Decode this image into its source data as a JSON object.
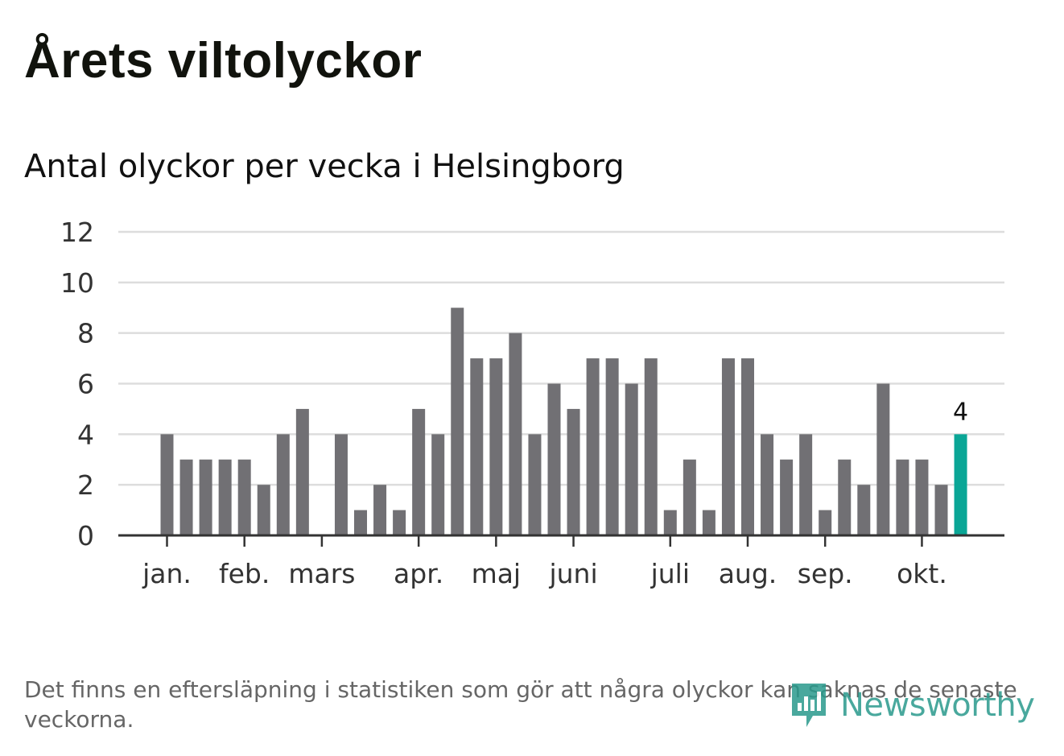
{
  "header": {
    "title": "Årets viltolyckor",
    "subtitle": "Antal olyckor per vecka i Helsingborg"
  },
  "footer": {
    "note": "Det finns en eftersläpning i statistiken som gör att några olyckor kan saknas de senaste veckorna.",
    "logo_text": "Newsworthy",
    "logo_icon": "bar-chart-bubble-icon"
  },
  "colors": {
    "bar": "#717074",
    "highlight": "#0aa696",
    "grid": "#dddddd",
    "axis": "#333333",
    "logo": "#2a9a8c"
  },
  "chart_data": {
    "type": "bar",
    "title": "Antal olyckor per vecka i Helsingborg",
    "xlabel": "",
    "ylabel": "",
    "ylim": [
      0,
      12
    ],
    "yticks": [
      0,
      2,
      4,
      6,
      8,
      10,
      12
    ],
    "grid": true,
    "week_start": 1,
    "values": [
      4,
      3,
      3,
      3,
      3,
      2,
      4,
      5,
      0,
      4,
      1,
      2,
      1,
      5,
      4,
      9,
      7,
      7,
      8,
      4,
      6,
      5,
      7,
      7,
      6,
      7,
      1,
      3,
      1,
      7,
      7,
      4,
      3,
      4,
      1,
      3,
      2,
      6,
      3,
      3,
      2,
      4
    ],
    "month_labels": [
      {
        "label": "jan.",
        "week": 1
      },
      {
        "label": "feb.",
        "week": 5
      },
      {
        "label": "mars",
        "week": 9
      },
      {
        "label": "apr.",
        "week": 14
      },
      {
        "label": "maj",
        "week": 18
      },
      {
        "label": "juni",
        "week": 22
      },
      {
        "label": "juli",
        "week": 27
      },
      {
        "label": "aug.",
        "week": 31
      },
      {
        "label": "sep.",
        "week": 35
      },
      {
        "label": "okt.",
        "week": 40
      }
    ],
    "highlight_index": 41,
    "highlight_label": "4"
  }
}
